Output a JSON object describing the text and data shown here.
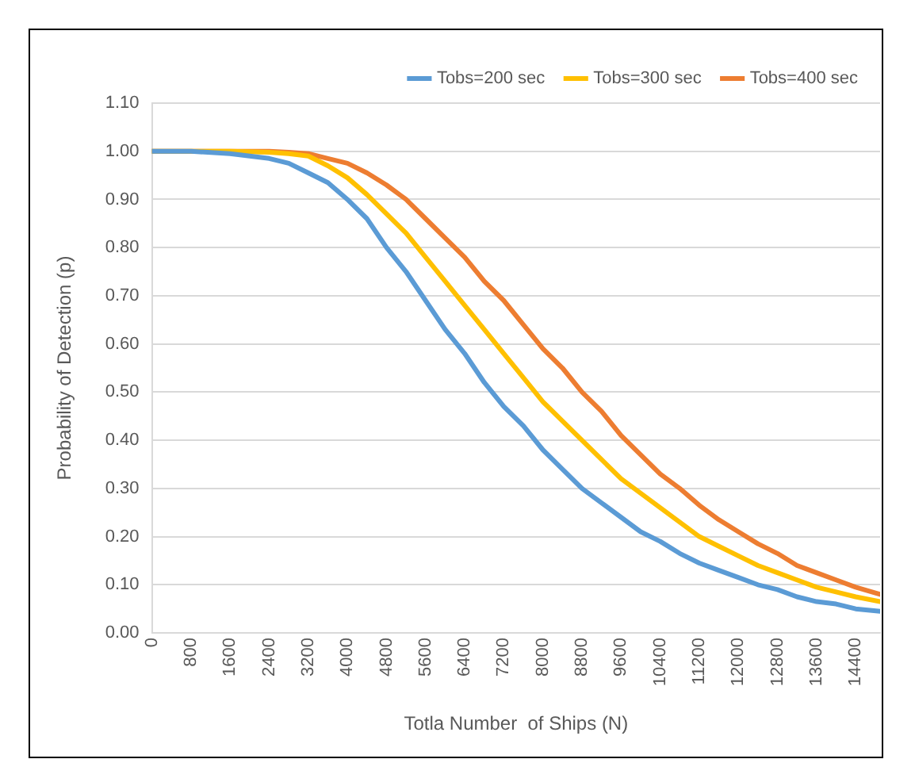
{
  "chart_data": {
    "type": "line",
    "xlabel": "Totla Number  of Ships (N)",
    "ylabel": "Probability of Detection (p)",
    "x": [
      0,
      800,
      1600,
      2400,
      2800,
      3200,
      3600,
      4000,
      4400,
      4800,
      5200,
      5600,
      6000,
      6400,
      6800,
      7200,
      7600,
      8000,
      8400,
      8800,
      9200,
      9600,
      10000,
      10400,
      10800,
      11200,
      11600,
      12000,
      12400,
      12800,
      13200,
      13600,
      14000,
      14400,
      14900
    ],
    "series": [
      {
        "name": "Tobs=200 sec",
        "color": "#5b9bd5",
        "values": [
          1.0,
          1.0,
          0.995,
          0.985,
          0.975,
          0.955,
          0.935,
          0.9,
          0.86,
          0.8,
          0.75,
          0.69,
          0.63,
          0.58,
          0.52,
          0.47,
          0.43,
          0.38,
          0.34,
          0.3,
          0.27,
          0.24,
          0.21,
          0.19,
          0.165,
          0.145,
          0.13,
          0.115,
          0.1,
          0.09,
          0.075,
          0.065,
          0.06,
          0.05,
          0.045
        ]
      },
      {
        "name": "Tobs=300 sec",
        "color": "#ffc000",
        "values": [
          1.0,
          1.0,
          1.0,
          0.998,
          0.995,
          0.99,
          0.97,
          0.945,
          0.91,
          0.87,
          0.83,
          0.78,
          0.73,
          0.68,
          0.63,
          0.58,
          0.53,
          0.48,
          0.44,
          0.4,
          0.36,
          0.32,
          0.29,
          0.26,
          0.23,
          0.2,
          0.18,
          0.16,
          0.14,
          0.125,
          0.11,
          0.095,
          0.085,
          0.075,
          0.065
        ]
      },
      {
        "name": "Tobs=400 sec",
        "color": "#ed7d31",
        "values": [
          1.0,
          1.0,
          1.0,
          1.0,
          0.998,
          0.995,
          0.985,
          0.975,
          0.955,
          0.93,
          0.9,
          0.86,
          0.82,
          0.78,
          0.73,
          0.69,
          0.64,
          0.59,
          0.55,
          0.5,
          0.46,
          0.41,
          0.37,
          0.33,
          0.3,
          0.265,
          0.235,
          0.21,
          0.185,
          0.165,
          0.14,
          0.125,
          0.11,
          0.095,
          0.08
        ]
      }
    ],
    "xlim": [
      0,
      14900
    ],
    "xticks": [
      0,
      800,
      1600,
      2400,
      3200,
      4000,
      4800,
      5600,
      6400,
      7200,
      8000,
      8800,
      9600,
      10400,
      11200,
      12000,
      12800,
      13600,
      14400
    ],
    "ylim": [
      0,
      1.1
    ],
    "yticks": [
      {
        "value": 0,
        "label": "0.00"
      },
      {
        "value": 0.1,
        "label": "0.10"
      },
      {
        "value": 0.2,
        "label": "0.20"
      },
      {
        "value": 0.3,
        "label": "0.30"
      },
      {
        "value": 0.4,
        "label": "0.40"
      },
      {
        "value": 0.5,
        "label": "0.50"
      },
      {
        "value": 0.6,
        "label": "0.60"
      },
      {
        "value": 0.7,
        "label": "0.70"
      },
      {
        "value": 0.8,
        "label": "0.80"
      },
      {
        "value": 0.9,
        "label": "0.90"
      },
      {
        "value": 1.0,
        "label": "1.00"
      },
      {
        "value": 1.1,
        "label": "1.10"
      }
    ],
    "grid": "y",
    "legend": "top right",
    "marker": "none",
    "line_style": "solid"
  }
}
